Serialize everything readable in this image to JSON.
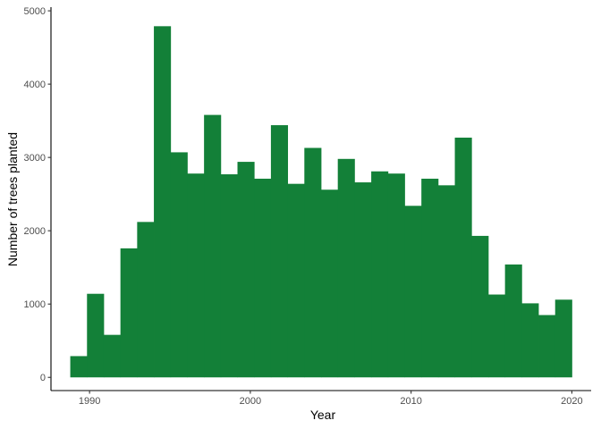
{
  "chart_data": {
    "type": "bar",
    "subtype": "histogram",
    "title": "",
    "xlabel": "Year",
    "ylabel": "Number of trees planted",
    "bar_color": "#138038",
    "grid": false,
    "xlim": [
      1987.6,
      2021.2
    ],
    "ylim": [
      -180,
      5050
    ],
    "x_ticks": [
      1990,
      2000,
      2010,
      2020
    ],
    "y_ticks": [
      0,
      1000,
      2000,
      3000,
      4000,
      5000
    ],
    "x_tick_labels": [
      "1990",
      "2000",
      "2010",
      "2020"
    ],
    "y_tick_labels": [
      "0",
      "1000",
      "2000",
      "3000",
      "4000",
      "5000"
    ],
    "bins": [
      {
        "x0": 1988.8,
        "x1": 1989.84,
        "value": 290
      },
      {
        "x0": 1989.84,
        "x1": 1990.88,
        "value": 1140
      },
      {
        "x0": 1990.88,
        "x1": 1991.92,
        "value": 580
      },
      {
        "x0": 1991.92,
        "x1": 1992.96,
        "value": 1760
      },
      {
        "x0": 1992.96,
        "x1": 1994.0,
        "value": 2120
      },
      {
        "x0": 1994.0,
        "x1": 1995.04,
        "value": 4790
      },
      {
        "x0": 1995.04,
        "x1": 1996.08,
        "value": 3070
      },
      {
        "x0": 1996.08,
        "x1": 1997.12,
        "value": 2780
      },
      {
        "x0": 1997.12,
        "x1": 1998.16,
        "value": 3580
      },
      {
        "x0": 1998.16,
        "x1": 1999.2,
        "value": 2770
      },
      {
        "x0": 1999.2,
        "x1": 2000.24,
        "value": 2940
      },
      {
        "x0": 2000.24,
        "x1": 2001.28,
        "value": 2710
      },
      {
        "x0": 2001.28,
        "x1": 2002.32,
        "value": 3440
      },
      {
        "x0": 2002.32,
        "x1": 2003.36,
        "value": 2640
      },
      {
        "x0": 2003.36,
        "x1": 2004.4,
        "value": 3130
      },
      {
        "x0": 2004.4,
        "x1": 2005.44,
        "value": 2560
      },
      {
        "x0": 2005.44,
        "x1": 2006.48,
        "value": 2980
      },
      {
        "x0": 2006.48,
        "x1": 2007.52,
        "value": 2660
      },
      {
        "x0": 2007.52,
        "x1": 2008.56,
        "value": 2810
      },
      {
        "x0": 2008.56,
        "x1": 2009.6,
        "value": 2780
      },
      {
        "x0": 2009.6,
        "x1": 2010.64,
        "value": 2340
      },
      {
        "x0": 2010.64,
        "x1": 2011.68,
        "value": 2710
      },
      {
        "x0": 2011.68,
        "x1": 2012.72,
        "value": 2620
      },
      {
        "x0": 2012.72,
        "x1": 2013.76,
        "value": 3270
      },
      {
        "x0": 2013.76,
        "x1": 2014.8,
        "value": 1930
      },
      {
        "x0": 2014.8,
        "x1": 2015.84,
        "value": 1130
      },
      {
        "x0": 2015.84,
        "x1": 2016.88,
        "value": 1540
      },
      {
        "x0": 2016.88,
        "x1": 2017.92,
        "value": 1010
      },
      {
        "x0": 2017.92,
        "x1": 2018.96,
        "value": 850
      },
      {
        "x0": 2018.96,
        "x1": 2020.0,
        "value": 1060
      }
    ]
  }
}
